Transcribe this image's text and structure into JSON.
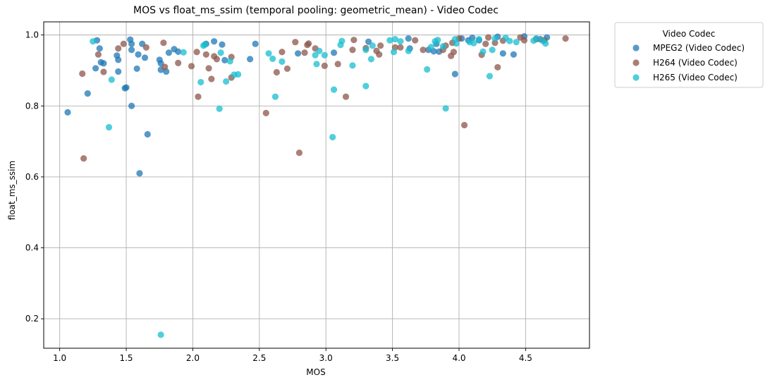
{
  "chart_data": {
    "type": "scatter",
    "title": "MOS vs float_ms_ssim (temporal pooling: geometric_mean) - Video Codec",
    "xlabel": "MOS",
    "ylabel": "float_ms_ssim",
    "xlim": [
      0.88,
      4.98
    ],
    "ylim": [
      0.117,
      1.037
    ],
    "xticks": [
      1.0,
      1.5,
      2.0,
      2.5,
      3.0,
      3.5,
      4.0,
      4.5
    ],
    "xtick_labels": [
      "1.0",
      "1.5",
      "2.0",
      "2.5",
      "3.0",
      "3.5",
      "4.0",
      "4.5"
    ],
    "yticks": [
      0.2,
      0.4,
      0.6,
      0.8,
      1.0
    ],
    "ytick_labels": [
      "0.2",
      "0.4",
      "0.6",
      "0.8",
      "1.0"
    ],
    "grid": true,
    "legend_title": "Video Codec",
    "legend_position": "outside-top-right",
    "series": [
      {
        "name": "MPEG2 (Video Codec)",
        "color": "#1f77b4",
        "points": [
          [
            1.06,
            0.782
          ],
          [
            1.21,
            0.835
          ],
          [
            1.27,
            0.906
          ],
          [
            1.28,
            0.985
          ],
          [
            1.3,
            0.962
          ],
          [
            1.31,
            0.923
          ],
          [
            1.33,
            0.92
          ],
          [
            1.43,
            0.942
          ],
          [
            1.44,
            0.93
          ],
          [
            1.44,
            0.897
          ],
          [
            1.49,
            0.85
          ],
          [
            1.5,
            0.852
          ],
          [
            1.53,
            0.987
          ],
          [
            1.54,
            0.975
          ],
          [
            1.54,
            0.958
          ],
          [
            1.54,
            0.8
          ],
          [
            1.58,
            0.905
          ],
          [
            1.59,
            0.945
          ],
          [
            1.6,
            0.61
          ],
          [
            1.62,
            0.975
          ],
          [
            1.64,
            0.936
          ],
          [
            1.66,
            0.72
          ],
          [
            1.75,
            0.93
          ],
          [
            1.76,
            0.902
          ],
          [
            1.76,
            0.92
          ],
          [
            1.8,
            0.897
          ],
          [
            1.82,
            0.95
          ],
          [
            1.86,
            0.96
          ],
          [
            1.89,
            0.953
          ],
          [
            2.1,
            0.975
          ],
          [
            2.16,
            0.982
          ],
          [
            2.22,
            0.973
          ],
          [
            2.24,
            0.929
          ],
          [
            2.43,
            0.932
          ],
          [
            2.47,
            0.975
          ],
          [
            2.79,
            0.948
          ],
          [
            3.06,
            0.95
          ],
          [
            3.32,
            0.981
          ],
          [
            3.62,
            0.99
          ],
          [
            3.63,
            0.962
          ],
          [
            3.77,
            0.958
          ],
          [
            3.81,
            0.954
          ],
          [
            3.85,
            0.953
          ],
          [
            3.97,
            0.89
          ],
          [
            4.02,
            0.99
          ],
          [
            4.1,
            0.992
          ],
          [
            4.15,
            0.985
          ],
          [
            4.29,
            0.995
          ],
          [
            4.33,
            0.948
          ],
          [
            4.41,
            0.945
          ],
          [
            4.49,
            0.996
          ],
          [
            4.61,
            0.988
          ],
          [
            4.66,
            0.993
          ],
          [
            4.07,
            0.985
          ],
          [
            3.83,
            0.975
          ]
        ]
      },
      {
        "name": "H264 (Video Codec)",
        "color": "#8c564b",
        "points": [
          [
            1.17,
            0.891
          ],
          [
            1.18,
            0.652
          ],
          [
            1.29,
            0.945
          ],
          [
            1.33,
            0.896
          ],
          [
            1.44,
            0.962
          ],
          [
            1.48,
            0.975
          ],
          [
            1.65,
            0.965
          ],
          [
            1.78,
            0.978
          ],
          [
            1.79,
            0.91
          ],
          [
            1.89,
            0.921
          ],
          [
            1.99,
            0.912
          ],
          [
            2.03,
            0.952
          ],
          [
            2.04,
            0.826
          ],
          [
            2.1,
            0.945
          ],
          [
            2.12,
            0.906
          ],
          [
            2.14,
            0.876
          ],
          [
            2.16,
            0.94
          ],
          [
            2.18,
            0.932
          ],
          [
            2.29,
            0.938
          ],
          [
            2.29,
            0.88
          ],
          [
            2.55,
            0.78
          ],
          [
            2.63,
            0.895
          ],
          [
            2.67,
            0.952
          ],
          [
            2.71,
            0.905
          ],
          [
            2.77,
            0.98
          ],
          [
            2.8,
            0.668
          ],
          [
            2.84,
            0.95
          ],
          [
            2.86,
            0.972
          ],
          [
            2.87,
            0.976
          ],
          [
            2.92,
            0.962
          ],
          [
            2.99,
            0.913
          ],
          [
            3.09,
            0.918
          ],
          [
            3.15,
            0.826
          ],
          [
            3.2,
            0.958
          ],
          [
            3.21,
            0.986
          ],
          [
            3.3,
            0.963
          ],
          [
            3.38,
            0.955
          ],
          [
            3.4,
            0.945
          ],
          [
            3.41,
            0.97
          ],
          [
            3.52,
            0.965
          ],
          [
            3.56,
            0.965
          ],
          [
            3.67,
            0.985
          ],
          [
            3.73,
            0.958
          ],
          [
            3.88,
            0.958
          ],
          [
            3.9,
            0.97
          ],
          [
            3.94,
            0.941
          ],
          [
            3.95,
            0.978
          ],
          [
            3.96,
            0.952
          ],
          [
            4.0,
            0.99
          ],
          [
            4.04,
            0.746
          ],
          [
            4.17,
            0.944
          ],
          [
            4.2,
            0.975
          ],
          [
            4.22,
            0.993
          ],
          [
            4.27,
            0.978
          ],
          [
            4.29,
            0.909
          ],
          [
            4.33,
            0.984
          ],
          [
            4.46,
            0.993
          ],
          [
            4.49,
            0.985
          ],
          [
            4.58,
            0.988
          ],
          [
            4.64,
            0.985
          ],
          [
            4.8,
            0.99
          ]
        ]
      },
      {
        "name": "H265 (Video Codec)",
        "color": "#17becf",
        "points": [
          [
            1.25,
            0.982
          ],
          [
            1.37,
            0.74
          ],
          [
            1.39,
            0.874
          ],
          [
            1.76,
            0.155
          ],
          [
            1.93,
            0.951
          ],
          [
            2.06,
            0.867
          ],
          [
            2.08,
            0.97
          ],
          [
            2.09,
            0.973
          ],
          [
            2.2,
            0.792
          ],
          [
            2.21,
            0.95
          ],
          [
            2.25,
            0.869
          ],
          [
            2.28,
            0.926
          ],
          [
            2.31,
            0.888
          ],
          [
            2.34,
            0.889
          ],
          [
            2.57,
            0.948
          ],
          [
            2.6,
            0.933
          ],
          [
            2.62,
            0.826
          ],
          [
            2.67,
            0.925
          ],
          [
            2.92,
            0.943
          ],
          [
            2.93,
            0.918
          ],
          [
            2.95,
            0.955
          ],
          [
            2.99,
            0.943
          ],
          [
            3.05,
            0.712
          ],
          [
            3.06,
            0.846
          ],
          [
            3.11,
            0.972
          ],
          [
            3.12,
            0.983
          ],
          [
            3.2,
            0.914
          ],
          [
            3.3,
            0.856
          ],
          [
            3.3,
            0.958
          ],
          [
            3.34,
            0.932
          ],
          [
            3.35,
            0.97
          ],
          [
            3.48,
            0.985
          ],
          [
            3.51,
            0.952
          ],
          [
            3.52,
            0.988
          ],
          [
            3.56,
            0.982
          ],
          [
            3.62,
            0.955
          ],
          [
            3.76,
            0.903
          ],
          [
            3.79,
            0.966
          ],
          [
            3.82,
            0.982
          ],
          [
            3.84,
            0.986
          ],
          [
            3.9,
            0.793
          ],
          [
            3.97,
            0.988
          ],
          [
            3.98,
            0.976
          ],
          [
            4.08,
            0.98
          ],
          [
            4.11,
            0.977
          ],
          [
            4.15,
            0.988
          ],
          [
            4.18,
            0.953
          ],
          [
            4.23,
            0.884
          ],
          [
            4.25,
            0.958
          ],
          [
            4.27,
            0.99
          ],
          [
            4.35,
            0.992
          ],
          [
            4.38,
            0.983
          ],
          [
            4.43,
            0.98
          ],
          [
            4.56,
            0.984
          ],
          [
            4.58,
            0.99
          ],
          [
            4.63,
            0.983
          ],
          [
            4.65,
            0.976
          ],
          [
            3.88,
            0.968
          ]
        ]
      }
    ]
  }
}
